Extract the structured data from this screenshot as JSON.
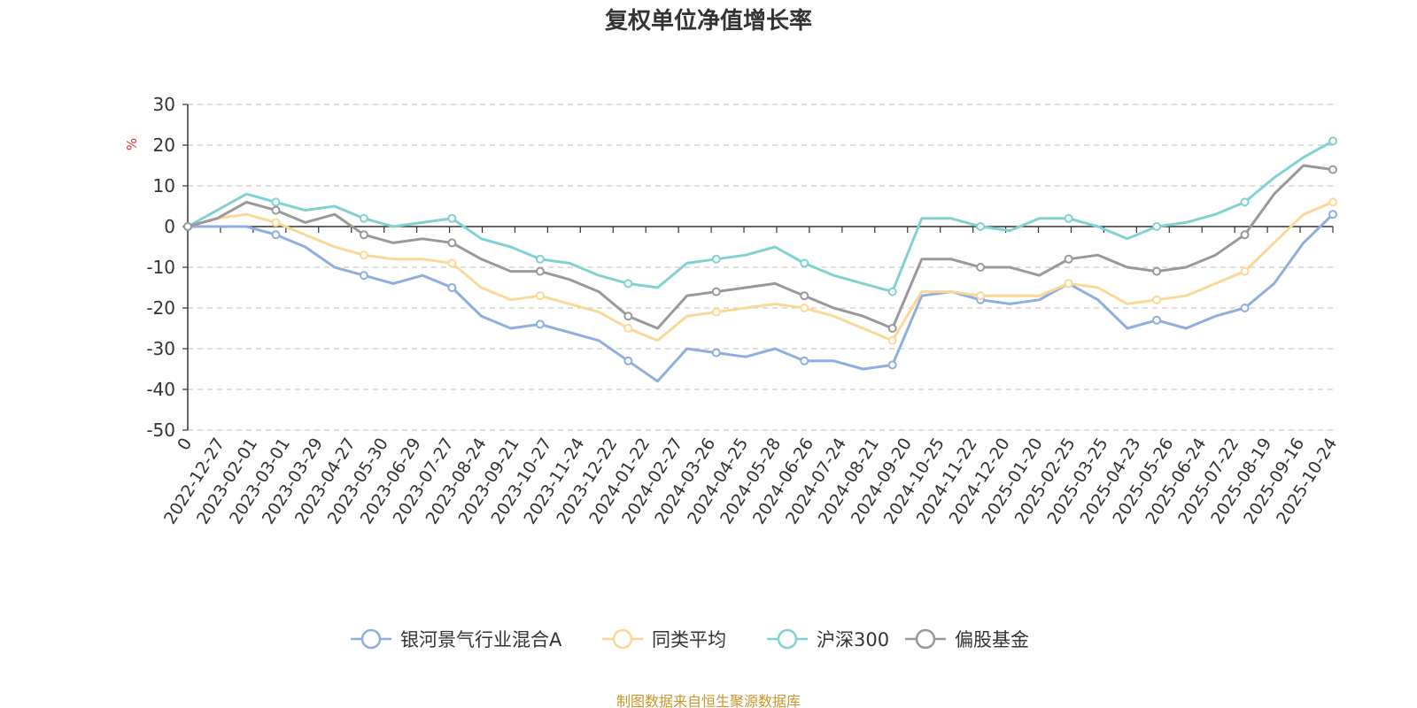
{
  "chart_data": {
    "type": "line",
    "title": "复权单位净值增长率",
    "ylabel": "%",
    "ylim": [
      -50,
      30
    ],
    "yticks": [
      30,
      20,
      10,
      0,
      -10,
      -20,
      -30,
      -40,
      -50
    ],
    "x_ticks": [
      "0",
      "2022-12-27",
      "2023-02-01",
      "2023-03-01",
      "2023-03-29",
      "2023-04-27",
      "2023-05-30",
      "2023-06-29",
      "2023-07-27",
      "2023-08-24",
      "2023-09-21",
      "2023-10-27",
      "2023-11-24",
      "2023-12-22",
      "2024-01-22",
      "2024-02-27",
      "2024-03-26",
      "2024-04-25",
      "2024-05-28",
      "2024-06-26",
      "2024-07-24",
      "2024-08-21",
      "2024-09-20",
      "2024-10-25",
      "2024-11-22",
      "2024-12-20",
      "2025-01-20",
      "2025-02-25",
      "2025-03-25",
      "2025-04-23",
      "2025-05-26",
      "2025-06-24",
      "2025-07-22",
      "2025-08-19",
      "2025-09-16",
      "2025-10-24"
    ],
    "grid": true,
    "legend_position": "bottom",
    "series": [
      {
        "name": "银河景气行业混合A",
        "color": "#8daedf",
        "values": [
          0,
          0,
          0,
          -2,
          -5,
          -10,
          -12,
          -14,
          -12,
          -15,
          -22,
          -25,
          -24,
          -26,
          -28,
          -33,
          -38,
          -30,
          -31,
          -32,
          -30,
          -33,
          -33,
          -35,
          -34,
          -17,
          -16,
          -18,
          -19,
          -18,
          -14,
          -18,
          -25,
          -23,
          -25,
          -22,
          -20,
          -14,
          -4,
          3
        ]
      },
      {
        "name": "同类平均",
        "color": "#fcd896",
        "values": [
          0,
          2,
          3,
          1,
          -2,
          -5,
          -7,
          -8,
          -8,
          -9,
          -15,
          -18,
          -17,
          -19,
          -21,
          -25,
          -28,
          -22,
          -21,
          -20,
          -19,
          -20,
          -22,
          -25,
          -28,
          -16,
          -16,
          -17,
          -17,
          -17,
          -14,
          -15,
          -19,
          -18,
          -17,
          -14,
          -11,
          -4,
          3,
          6
        ]
      },
      {
        "name": "沪深300",
        "color": "#7fd2d1",
        "values": [
          0,
          4,
          8,
          6,
          4,
          5,
          2,
          0,
          1,
          2,
          -3,
          -5,
          -8,
          -9,
          -12,
          -14,
          -15,
          -9,
          -8,
          -7,
          -5,
          -9,
          -12,
          -14,
          -16,
          2,
          2,
          0,
          -1,
          2,
          2,
          0,
          -3,
          0,
          1,
          3,
          6,
          12,
          17,
          21
        ]
      },
      {
        "name": "偏股基金",
        "color": "#999999",
        "values": [
          0,
          2,
          6,
          4,
          1,
          3,
          -2,
          -4,
          -3,
          -4,
          -8,
          -11,
          -11,
          -13,
          -16,
          -22,
          -25,
          -17,
          -16,
          -15,
          -14,
          -17,
          -20,
          -22,
          -25,
          -8,
          -8,
          -10,
          -10,
          -12,
          -8,
          -7,
          -10,
          -11,
          -10,
          -7,
          -2,
          8,
          15,
          14
        ]
      }
    ]
  },
  "legend": {
    "items": [
      "银河景气行业混合A",
      "同类平均",
      "沪深300",
      "偏股基金"
    ]
  },
  "source_note": "制图数据来自恒生聚源数据库"
}
